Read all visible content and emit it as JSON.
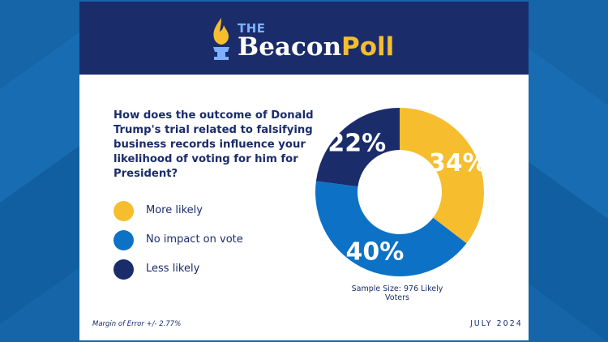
{
  "header": {
    "logo_the": "THE",
    "logo_beacon": "Beacon",
    "logo_poll": "Poll",
    "logo_icon": "torch-icon"
  },
  "question": "How does the outcome of Donald Trump's trial related to falsifying business records influence your likelihood of voting for him for President?",
  "chart_data": {
    "type": "pie",
    "categories": [
      "More likely",
      "No impact on vote",
      "Less likely"
    ],
    "values": [
      34,
      40,
      22
    ],
    "data_labels": [
      "34%",
      "40%",
      "22%"
    ],
    "colors": [
      "#f6be2e",
      "#0d72c6",
      "#1b2c6b"
    ],
    "donut": true,
    "legend_placement": "left"
  },
  "sample_size": "Sample Size: 976 Likely Voters",
  "margin_of_error": "Margin of Error +/- 2.77%",
  "date": "JULY 2024",
  "colors": {
    "background": "#1565a8",
    "header": "#1b2c6b",
    "accent": "#f6be2e",
    "text": "#1b2c6b"
  }
}
